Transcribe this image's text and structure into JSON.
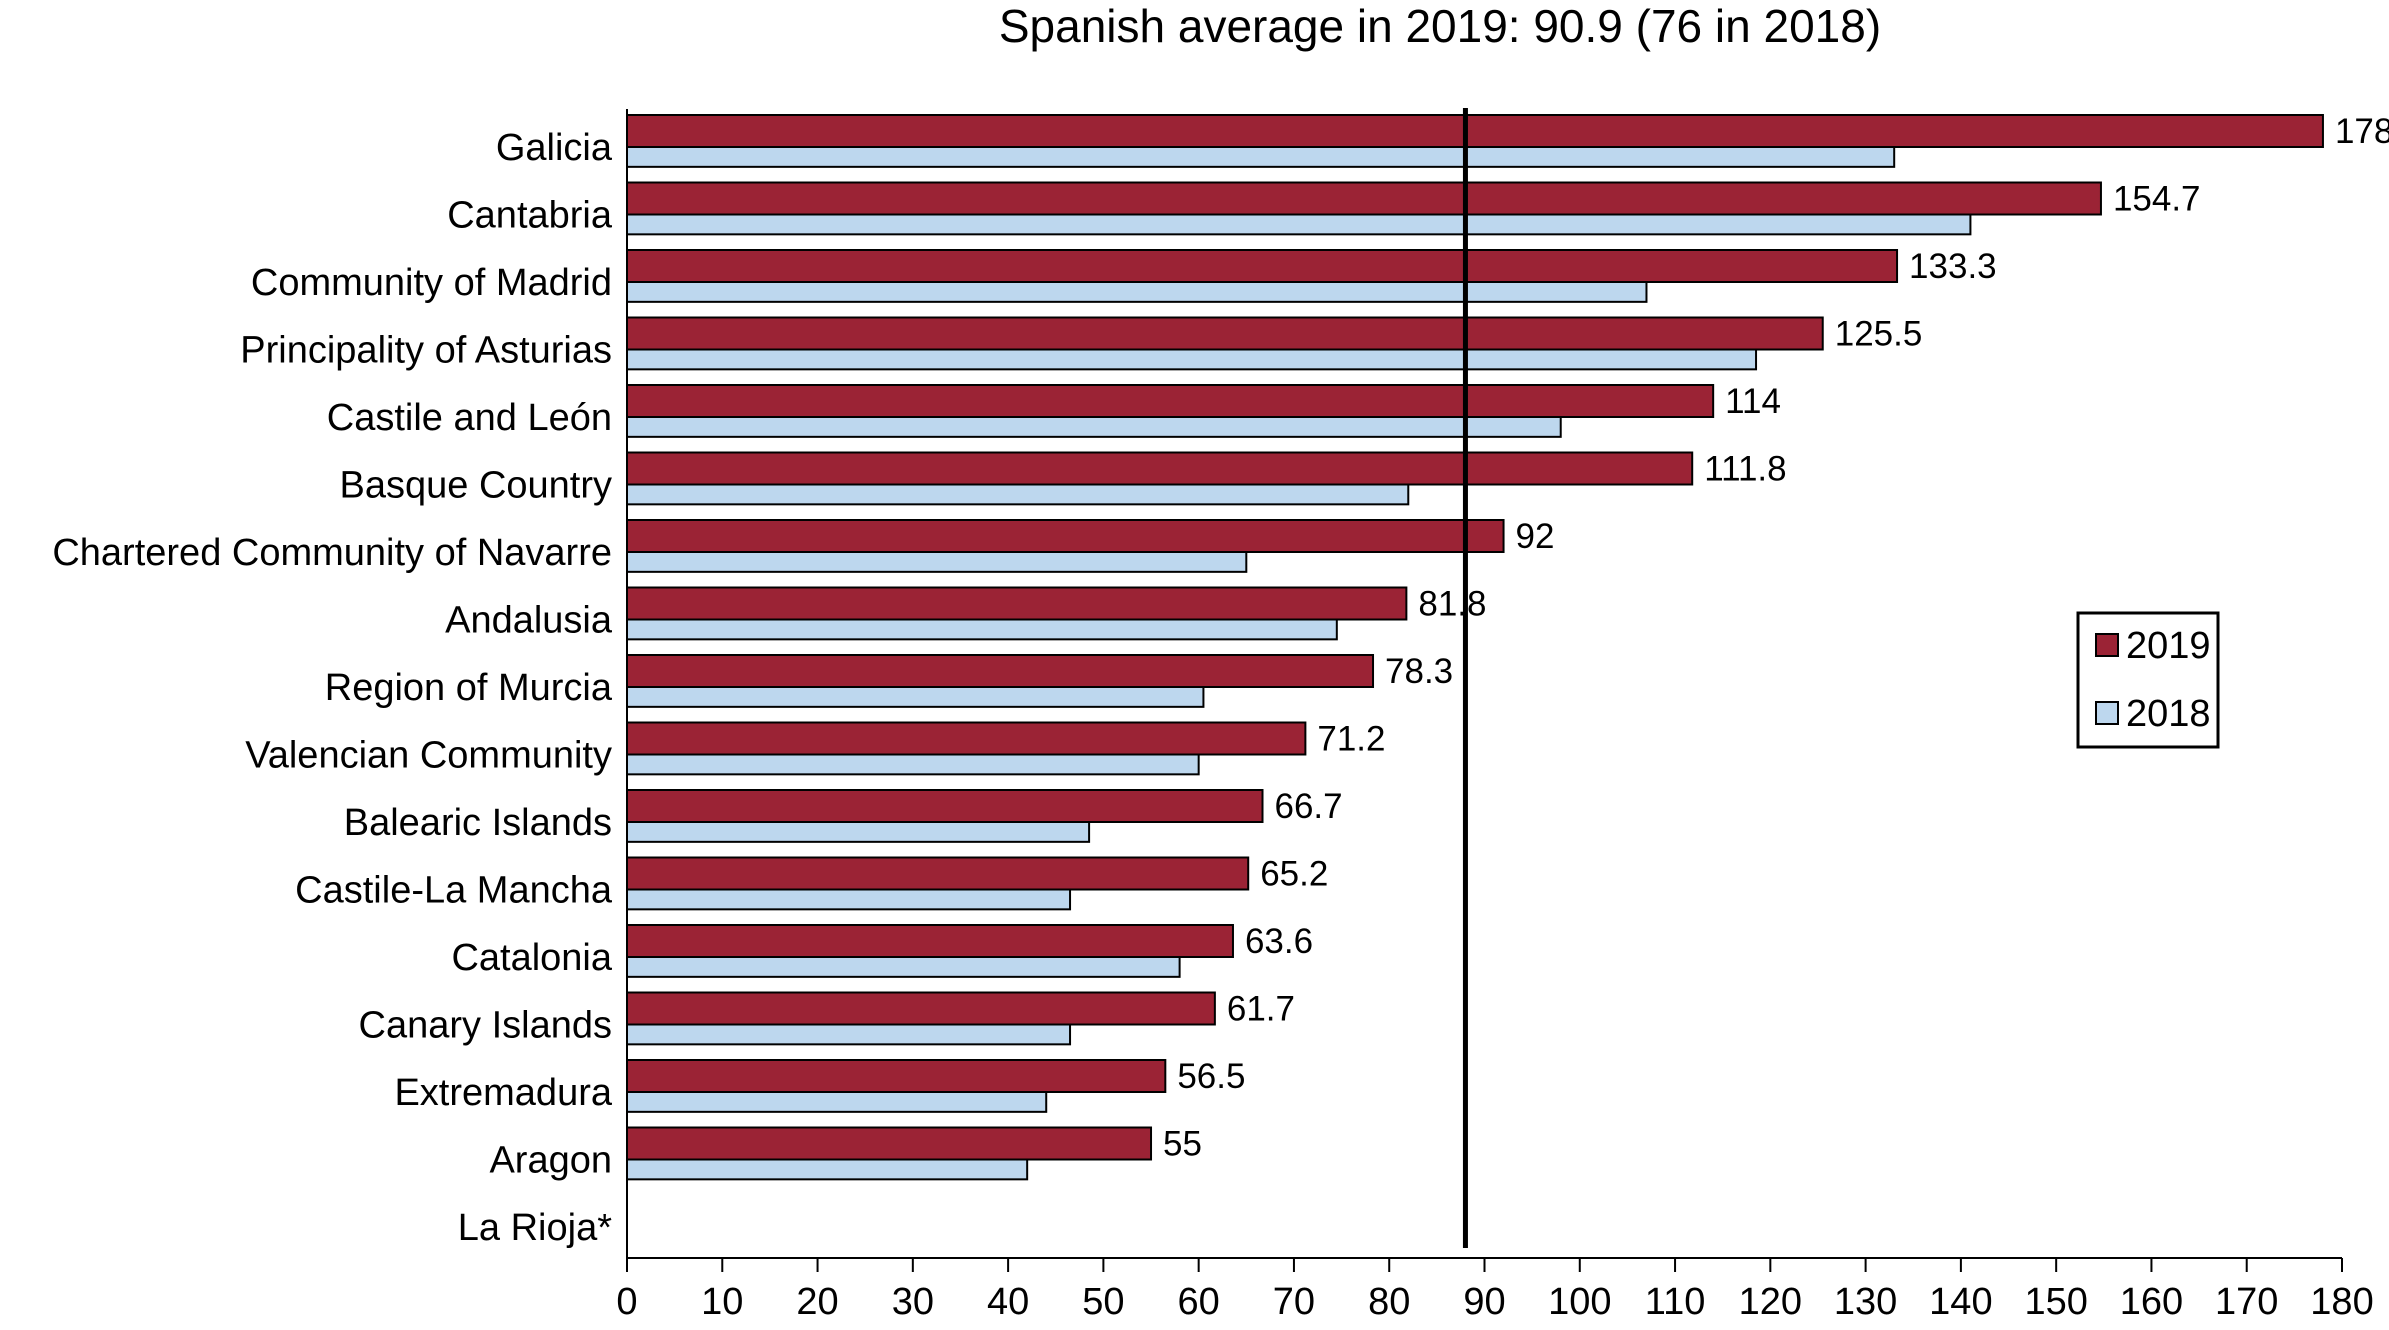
{
  "chart_data": {
    "type": "bar",
    "orientation": "horizontal",
    "title": "Spanish average in 2019: 90.9 (76 in 2018)",
    "categories": [
      "Galicia",
      "Cantabria",
      "Community of Madrid",
      "Principality of Asturias",
      "Castile and León",
      "Basque Country",
      "Chartered Community of Navarre",
      "Andalusia",
      "Region of Murcia",
      "Valencian Community",
      "Balearic Islands",
      "Castile-La Mancha",
      "Catalonia",
      "Canary Islands",
      "Extremadura",
      "Aragon",
      "La Rioja*"
    ],
    "series": [
      {
        "name": "2019",
        "color": "#9b2335",
        "values": [
          178,
          154.7,
          133.3,
          125.5,
          114,
          111.8,
          92,
          81.8,
          78.3,
          71.2,
          66.7,
          65.2,
          63.6,
          61.7,
          56.5,
          55,
          null
        ],
        "data_labels": [
          "178",
          "154.7",
          "133.3",
          "125.5",
          "114",
          "111.8",
          "92",
          "81.8",
          "78.3",
          "71.2",
          "66.7",
          "65.2",
          "63.6",
          "61.7",
          "56.5",
          "55",
          ""
        ]
      },
      {
        "name": "2018",
        "color": "#bdd7ee",
        "values": [
          133,
          141,
          107,
          118.5,
          98,
          82,
          65,
          74.5,
          60.5,
          60,
          48.5,
          46.5,
          58,
          46.5,
          44,
          42,
          null
        ]
      }
    ],
    "xlim": [
      0,
      180
    ],
    "x_ticks": [
      "0",
      "10",
      "20",
      "30",
      "40",
      "50",
      "60",
      "70",
      "80",
      "90",
      "100",
      "110",
      "120",
      "130",
      "140",
      "150",
      "160",
      "170",
      "180"
    ],
    "reference_line": {
      "value": 88
    },
    "legend": {
      "position": "right",
      "entries": [
        "2019",
        "2018"
      ]
    },
    "grid": false
  }
}
